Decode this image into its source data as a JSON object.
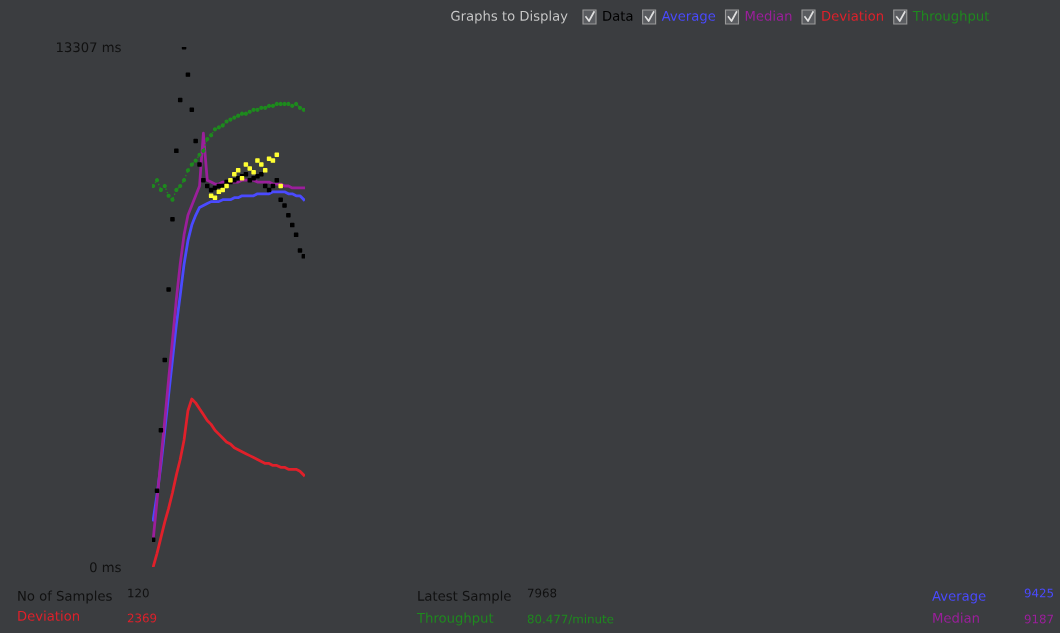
{
  "chart_data": {
    "type": "line",
    "legend_title": "Graphs to Display",
    "legend": "top",
    "categories": [
      null,
      null,
      null,
      null,
      null,
      null,
      null,
      null,
      null,
      null,
      null,
      null,
      null,
      null,
      null,
      null,
      null,
      null,
      null,
      null,
      null,
      null,
      null,
      null,
      null,
      null,
      null,
      null,
      null,
      null,
      null,
      null,
      null,
      null,
      null,
      null,
      null,
      null,
      null,
      null
    ],
    "ylim": [
      0,
      13307
    ],
    "yticks": [
      {
        "value": 0,
        "label": "0 ms"
      },
      {
        "value": 13307,
        "label": "13307 ms"
      }
    ],
    "tick_labels": "y",
    "grid": false,
    "series": [
      {
        "name": "Data",
        "type": "scatter",
        "color": "#000000",
        "values": [
          700,
          1950,
          3500,
          5300,
          7100,
          8900,
          10650,
          11950,
          13300,
          12600,
          11700,
          10900,
          10300,
          9900,
          9750,
          9650,
          9700,
          9750,
          9750,
          9850,
          9850,
          9900,
          9950,
          10000,
          10050,
          9900,
          9950,
          10000,
          10050,
          9750,
          9650,
          9750,
          9900,
          9400,
          9250,
          9000,
          8750,
          8500,
          8100,
          7950
        ]
      },
      {
        "name": "Average",
        "color": "#4a4aff",
        "values": [
          1200,
          1850,
          2600,
          3500,
          4400,
          5300,
          6200,
          6950,
          7750,
          8350,
          8750,
          9000,
          9200,
          9250,
          9300,
          9350,
          9350,
          9350,
          9400,
          9400,
          9400,
          9450,
          9450,
          9500,
          9500,
          9500,
          9500,
          9550,
          9550,
          9550,
          9550,
          9600,
          9600,
          9600,
          9600,
          9550,
          9550,
          9500,
          9500,
          9400
        ]
      },
      {
        "name": "Median",
        "color": "#9b1f9b",
        "values": [
          700,
          1700,
          2750,
          3750,
          4800,
          5800,
          6850,
          7750,
          8500,
          9000,
          9250,
          9500,
          9750,
          11100,
          9900,
          9850,
          9800,
          9800,
          9850,
          9850,
          9850,
          9850,
          9850,
          9900,
          9900,
          9900,
          9900,
          9850,
          9850,
          9850,
          9850,
          9800,
          9800,
          9800,
          9750,
          9750,
          9700,
          9700,
          9700,
          9700
        ]
      },
      {
        "name": "Deviation",
        "color": "#e0202a",
        "values": [
          0,
          350,
          750,
          1150,
          1500,
          1900,
          2350,
          2750,
          3250,
          4000,
          4300,
          4200,
          4050,
          3900,
          3750,
          3650,
          3500,
          3400,
          3300,
          3200,
          3150,
          3050,
          3000,
          2950,
          2900,
          2850,
          2800,
          2750,
          2700,
          2650,
          2650,
          2600,
          2600,
          2550,
          2550,
          2500,
          2500,
          2500,
          2450,
          2350
        ]
      },
      {
        "name": "Throughput",
        "color": "#1e8a1e",
        "marker": "circle",
        "line_style": "dotted",
        "values": [
          9750,
          9900,
          9650,
          9750,
          9500,
          9400,
          9650,
          9750,
          9900,
          10150,
          10300,
          10400,
          10550,
          10650,
          10950,
          11050,
          11200,
          11250,
          11300,
          11400,
          11450,
          11500,
          11550,
          11600,
          11600,
          11650,
          11700,
          11700,
          11750,
          11750,
          11800,
          11800,
          11850,
          11850,
          11850,
          11850,
          11800,
          11850,
          11750,
          11700
        ]
      },
      {
        "type": "scatter",
        "color": "#ffff33",
        "values": [
          null,
          null,
          null,
          null,
          null,
          null,
          null,
          null,
          null,
          null,
          null,
          null,
          null,
          null,
          null,
          9500,
          9450,
          9600,
          9650,
          9750,
          9900,
          10050,
          10150,
          9950,
          10300,
          10200,
          10100,
          10400,
          10300,
          10150,
          10450,
          10400,
          10550,
          9750,
          null,
          null,
          null,
          null,
          null,
          null
        ]
      }
    ],
    "annotations": [
      "No of Samples",
      "120",
      "Deviation",
      "2369",
      "Latest Sample",
      "7968",
      "Throughput",
      "80.477/minute",
      "Average",
      "9425",
      "Median",
      "9187"
    ]
  }
}
